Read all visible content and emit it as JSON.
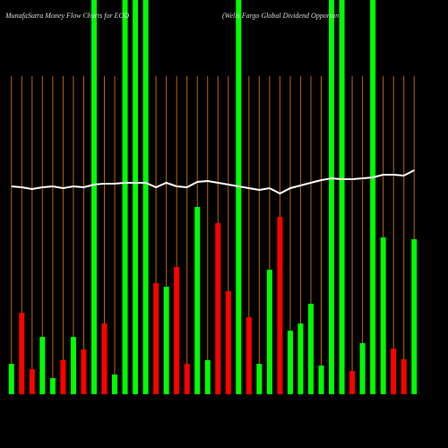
{
  "chart_data": {
    "type": "bar",
    "title": "MunafaSutra  Money Flow  Charts for EOD",
    "subtitle": "(Wells Fargo  Global Dividend Opportun",
    "ylim": [
      0,
      440
    ],
    "values": [
      34,
      91,
      28,
      64,
      18,
      38,
      64,
      50,
      440,
      79,
      22,
      440,
      440,
      440,
      124,
      120,
      142,
      34,
      209,
      38,
      191,
      115,
      440,
      86,
      34,
      139,
      198,
      71,
      79,
      101,
      32,
      440,
      440,
      26,
      57,
      440,
      175,
      51,
      39,
      173
    ],
    "colors": [
      "#00ff00",
      "#ff0000",
      "#ff0000",
      "#00ff00",
      "#00ff00",
      "#ff0000",
      "#00ff00",
      "#ff0000",
      "#00ff00",
      "#ff0000",
      "#00ff00",
      "#00ff00",
      "#00ff00",
      "#00ff00",
      "#ff0000",
      "#00ff00",
      "#ff0000",
      "#ff0000",
      "#00ff00",
      "#00ff00",
      "#ff0000",
      "#ff0000",
      "#00ff00",
      "#ff0000",
      "#00ff00",
      "#00ff00",
      "#ff0000",
      "#00ff00",
      "#00ff00",
      "#00ff00",
      "#00ff00",
      "#00ff00",
      "#00ff00",
      "#ff0000",
      "#00ff00",
      "#00ff00",
      "#00ff00",
      "#ff0000",
      "#ff0000",
      "#00ff00"
    ],
    "line_values": [
      232,
      231,
      229,
      231,
      232,
      230,
      232,
      231,
      234,
      235,
      235,
      236,
      236,
      236,
      231,
      236,
      232,
      231,
      237,
      238,
      236,
      234,
      232,
      230,
      228,
      230,
      224,
      230,
      233,
      236,
      239,
      241,
      240,
      240,
      241,
      242,
      245,
      245,
      244,
      250
    ],
    "line_color": "#ffffff",
    "guide_color": "#b8650f"
  }
}
